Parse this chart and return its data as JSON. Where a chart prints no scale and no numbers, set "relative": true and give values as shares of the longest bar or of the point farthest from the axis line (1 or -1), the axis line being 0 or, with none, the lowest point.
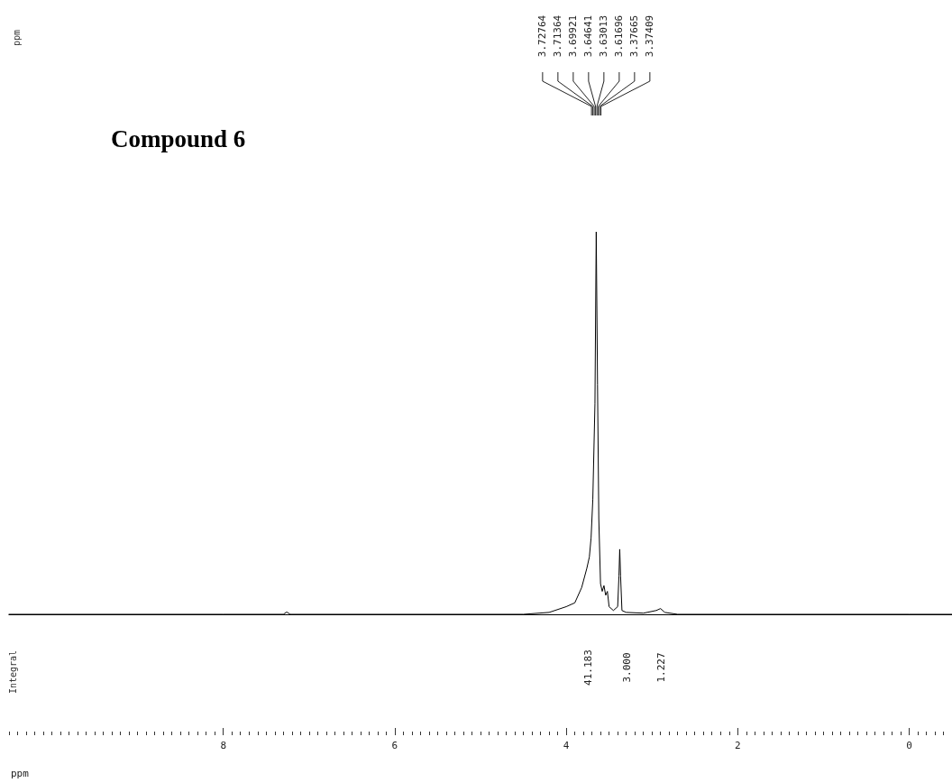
{
  "chart_data": {
    "type": "line",
    "title": "Compound 6",
    "xlabel": "ppm",
    "relative": true,
    "xlim": [
      10.5,
      -0.5
    ],
    "xticks": [
      8,
      6,
      4,
      2,
      0
    ],
    "tick_labels": "x",
    "grid": false,
    "marker": "none",
    "line_style": "solid",
    "series": [
      {
        "color": "#000000",
        "x": [
          10.5,
          8.0,
          7.3,
          7.26,
          7.22,
          5.0,
          4.5,
          4.2,
          4.0,
          3.9,
          3.82,
          3.76,
          3.73,
          3.71,
          3.69,
          3.665,
          3.65,
          3.635,
          3.62,
          3.6,
          3.58,
          3.56,
          3.54,
          3.52,
          3.5,
          3.45,
          3.4,
          3.385,
          3.376,
          3.366,
          3.35,
          3.3,
          3.1,
          2.95,
          2.9,
          2.85,
          2.7,
          0,
          -0.5
        ],
        "values": [
          0,
          0,
          0,
          0.006,
          0,
          0,
          0,
          0.005,
          0.02,
          0.03,
          0.07,
          0.12,
          0.15,
          0.2,
          0.3,
          0.55,
          1.0,
          0.6,
          0.25,
          0.08,
          0.06,
          0.075,
          0.05,
          0.06,
          0.02,
          0.01,
          0.02,
          0.1,
          0.17,
          0.1,
          0.01,
          0.005,
          0.003,
          0.01,
          0.015,
          0.005,
          0,
          0,
          0
        ]
      }
    ],
    "annotations": [
      "ppm",
      "Integral",
      "3.72764",
      "3.71364",
      "3.69921",
      "3.64641",
      "3.63013",
      "3.61696",
      "3.37665",
      "3.37409",
      "41.183",
      "3.000",
      "1.227"
    ]
  }
}
